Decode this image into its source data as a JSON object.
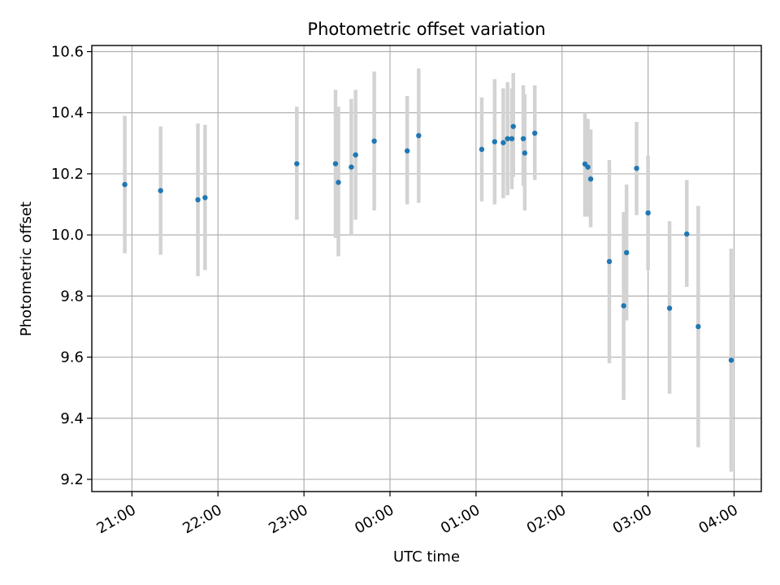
{
  "chart_data": {
    "type": "scatter",
    "title": "Photometric offset variation",
    "xlabel": "UTC time",
    "ylabel": "Photometric offset",
    "grid": true,
    "colors": {
      "point": "#1f77b4",
      "errorbar": "#d3d3d3",
      "grid": "#b0b0b0"
    },
    "x_tick_labels": [
      "21:00",
      "22:00",
      "23:00",
      "00:00",
      "01:00",
      "02:00",
      "03:00",
      "04:00"
    ],
    "y_tick_labels": [
      "9.2",
      "9.4",
      "9.6",
      "9.8",
      "10.0",
      "10.2",
      "10.4",
      "10.6"
    ],
    "ylim": [
      9.16,
      10.62
    ],
    "xlim": [
      "20:32",
      "04:19"
    ],
    "points": [
      {
        "time": "20:55",
        "offset": 10.165,
        "low": 9.94,
        "high": 10.39
      },
      {
        "time": "21:20",
        "offset": 10.145,
        "low": 9.935,
        "high": 10.355
      },
      {
        "time": "21:46",
        "offset": 10.115,
        "low": 9.865,
        "high": 10.365
      },
      {
        "time": "21:51",
        "offset": 10.122,
        "low": 9.885,
        "high": 10.36
      },
      {
        "time": "22:55",
        "offset": 10.233,
        "low": 10.05,
        "high": 10.42
      },
      {
        "time": "23:22",
        "offset": 10.233,
        "low": 9.99,
        "high": 10.475
      },
      {
        "time": "23:24",
        "offset": 10.172,
        "low": 9.93,
        "high": 10.42
      },
      {
        "time": "23:33",
        "offset": 10.222,
        "low": 10.0,
        "high": 10.445
      },
      {
        "time": "23:36",
        "offset": 10.262,
        "low": 10.05,
        "high": 10.475
      },
      {
        "time": "23:49",
        "offset": 10.307,
        "low": 10.08,
        "high": 10.535
      },
      {
        "time": "00:12",
        "offset": 10.275,
        "low": 10.1,
        "high": 10.455
      },
      {
        "time": "00:20",
        "offset": 10.325,
        "low": 10.105,
        "high": 10.545
      },
      {
        "time": "01:04",
        "offset": 10.28,
        "low": 10.11,
        "high": 10.45
      },
      {
        "time": "01:13",
        "offset": 10.305,
        "low": 10.1,
        "high": 10.51
      },
      {
        "time": "01:19",
        "offset": 10.302,
        "low": 10.12,
        "high": 10.48
      },
      {
        "time": "01:22",
        "offset": 10.315,
        "low": 10.13,
        "high": 10.5
      },
      {
        "time": "01:25",
        "offset": 10.315,
        "low": 10.15,
        "high": 10.48
      },
      {
        "time": "01:26",
        "offset": 10.355,
        "low": 10.19,
        "high": 10.53
      },
      {
        "time": "01:33",
        "offset": 10.315,
        "low": 10.16,
        "high": 10.49
      },
      {
        "time": "01:34",
        "offset": 10.268,
        "low": 10.08,
        "high": 10.46
      },
      {
        "time": "01:41",
        "offset": 10.333,
        "low": 10.18,
        "high": 10.49
      },
      {
        "time": "02:16",
        "offset": 10.232,
        "low": 10.06,
        "high": 10.4
      },
      {
        "time": "02:18",
        "offset": 10.222,
        "low": 10.06,
        "high": 10.38
      },
      {
        "time": "02:20",
        "offset": 10.183,
        "low": 10.025,
        "high": 10.345
      },
      {
        "time": "02:33",
        "offset": 9.913,
        "low": 9.58,
        "high": 10.245
      },
      {
        "time": "02:43",
        "offset": 9.768,
        "low": 9.46,
        "high": 10.075
      },
      {
        "time": "02:45",
        "offset": 9.942,
        "low": 9.72,
        "high": 10.165
      },
      {
        "time": "02:52",
        "offset": 10.218,
        "low": 10.065,
        "high": 10.37
      },
      {
        "time": "03:00",
        "offset": 10.072,
        "low": 9.885,
        "high": 10.26
      },
      {
        "time": "03:15",
        "offset": 9.76,
        "low": 9.48,
        "high": 10.045
      },
      {
        "time": "03:27",
        "offset": 10.003,
        "low": 9.83,
        "high": 10.18
      },
      {
        "time": "03:35",
        "offset": 9.7,
        "low": 9.305,
        "high": 10.095
      },
      {
        "time": "03:58",
        "offset": 9.59,
        "low": 9.225,
        "high": 9.955
      }
    ]
  }
}
